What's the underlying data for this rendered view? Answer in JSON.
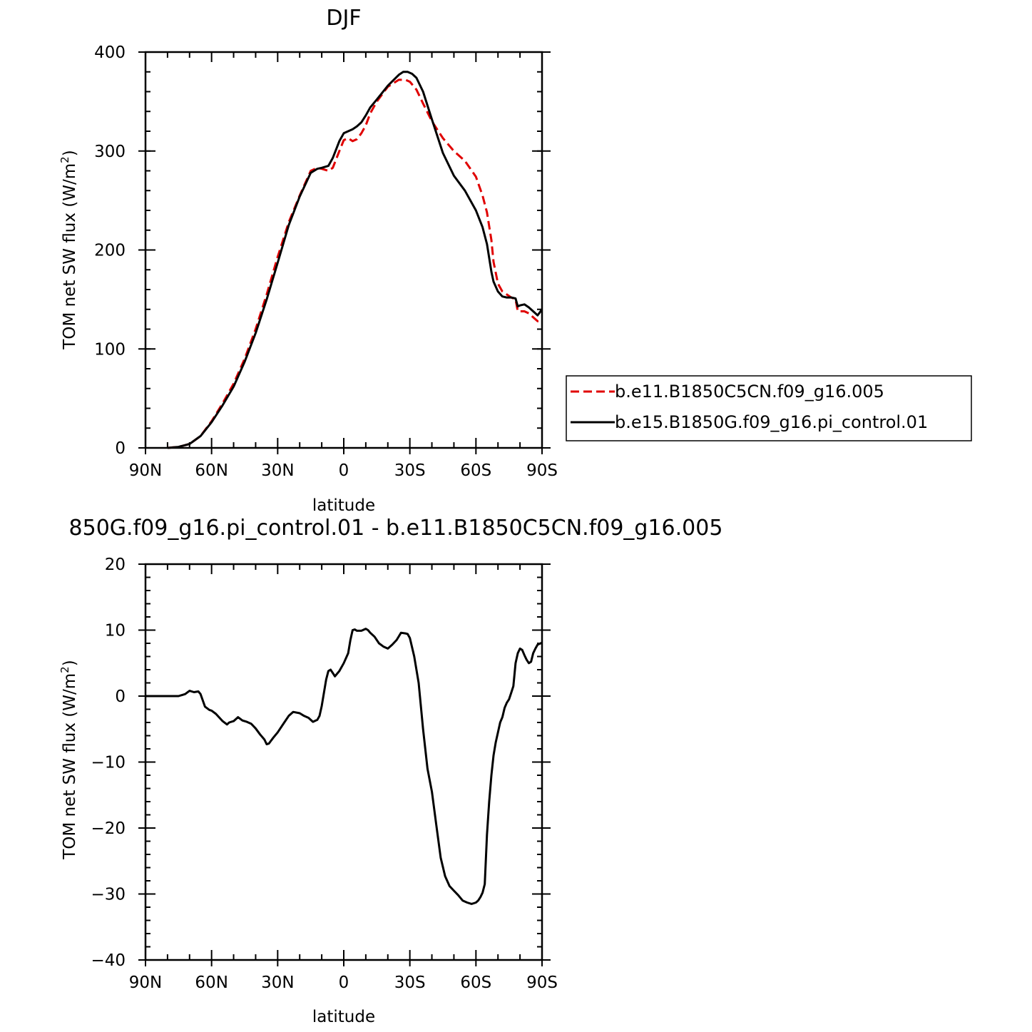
{
  "chart_data": [
    {
      "type": "line",
      "title": "DJF",
      "xlabel": "latitude",
      "ylabel": "TOM net SW flux (W/m",
      "ylabel_sup": "2",
      "ylabel_end": ")",
      "xlim": [
        90,
        -90
      ],
      "ylim": [
        0,
        400
      ],
      "x_ticks": [
        {
          "v": 90,
          "label": "90N"
        },
        {
          "v": 60,
          "label": "60N"
        },
        {
          "v": 30,
          "label": "30N"
        },
        {
          "v": 0,
          "label": "0"
        },
        {
          "v": -30,
          "label": "30S"
        },
        {
          "v": -60,
          "label": "60S"
        },
        {
          "v": -90,
          "label": "90S"
        }
      ],
      "y_ticks": [
        {
          "v": 0,
          "label": "0"
        },
        {
          "v": 100,
          "label": "100"
        },
        {
          "v": 200,
          "label": "200"
        },
        {
          "v": 300,
          "label": "300"
        },
        {
          "v": 400,
          "label": "400"
        }
      ],
      "legend_position": "right",
      "series": [
        {
          "name": "b.e11.B1850C5CN.f09_g16.005",
          "color": "#e00000",
          "dash": "dashed",
          "x": [
            80,
            75,
            70,
            65,
            60,
            55,
            50,
            45,
            40,
            35,
            30,
            25,
            20,
            15,
            12,
            10,
            7,
            5,
            2,
            0,
            -2,
            -4,
            -6,
            -8,
            -10,
            -12,
            -15,
            -20,
            -25,
            -28,
            -30,
            -33,
            -36,
            -40,
            -45,
            -50,
            -55,
            -60,
            -63,
            -65,
            -67,
            -68,
            -70,
            -72,
            -74,
            -76,
            -78,
            -79,
            -80,
            -82,
            -84,
            -86,
            -88,
            -90
          ],
          "y": [
            0,
            1,
            4,
            12,
            27,
            45,
            65,
            90,
            120,
            155,
            193,
            228,
            255,
            280,
            283,
            282,
            280,
            283,
            300,
            311,
            313,
            310,
            312,
            318,
            326,
            338,
            350,
            365,
            372,
            372,
            370,
            362,
            348,
            330,
            313,
            300,
            290,
            274,
            255,
            238,
            210,
            188,
            166,
            158,
            155,
            152,
            150,
            138,
            138,
            138,
            136,
            132,
            128,
            128
          ]
        },
        {
          "name": "b.e15.B1850G.f09_g16.pi_control.01",
          "color": "#000000",
          "dash": "solid",
          "x": [
            80,
            75,
            70,
            65,
            60,
            55,
            50,
            45,
            40,
            35,
            30,
            25,
            20,
            15,
            12,
            10,
            7,
            5,
            2,
            0,
            -2,
            -4,
            -6,
            -8,
            -10,
            -12,
            -15,
            -20,
            -25,
            -27,
            -29,
            -31,
            -33,
            -36,
            -40,
            -45,
            -50,
            -55,
            -60,
            -63,
            -65,
            -66,
            -67,
            -68,
            -70,
            -72,
            -74,
            -76,
            -78,
            -79,
            -80,
            -82,
            -84,
            -86,
            -88,
            -90
          ],
          "y": [
            0,
            1,
            4,
            12,
            26,
            43,
            62,
            87,
            116,
            150,
            187,
            225,
            254,
            278,
            282,
            283,
            285,
            293,
            310,
            318,
            320,
            322,
            325,
            329,
            336,
            344,
            352,
            366,
            377,
            380,
            380,
            378,
            374,
            360,
            332,
            298,
            275,
            260,
            240,
            223,
            206,
            192,
            178,
            168,
            158,
            153,
            152,
            152,
            151,
            143,
            144,
            145,
            142,
            138,
            134,
            140
          ]
        }
      ]
    },
    {
      "type": "line",
      "title": "850G.f09_g16.pi_control.01 - b.e11.B1850C5CN.f09_g16.005",
      "xlabel": "latitude",
      "ylabel": "TOM net SW flux (W/m",
      "ylabel_sup": "2",
      "ylabel_end": ")",
      "xlim": [
        90,
        -90
      ],
      "ylim": [
        -40,
        20
      ],
      "x_ticks": [
        {
          "v": 90,
          "label": "90N"
        },
        {
          "v": 60,
          "label": "60N"
        },
        {
          "v": 30,
          "label": "30N"
        },
        {
          "v": 0,
          "label": "0"
        },
        {
          "v": -30,
          "label": "30S"
        },
        {
          "v": -60,
          "label": "60S"
        },
        {
          "v": -90,
          "label": "90S"
        }
      ],
      "y_ticks": [
        {
          "v": -40,
          "label": "−40"
        },
        {
          "v": -30,
          "label": "−30"
        },
        {
          "v": -20,
          "label": "−20"
        },
        {
          "v": -10,
          "label": "−10"
        },
        {
          "v": 0,
          "label": "0"
        },
        {
          "v": 10,
          "label": "10"
        },
        {
          "v": 20,
          "label": "20"
        }
      ],
      "series": [
        {
          "color": "#000000",
          "dash": "solid",
          "x": [
            90,
            80,
            75,
            72,
            70,
            68,
            66,
            65,
            63,
            61,
            60,
            58,
            55,
            53,
            52,
            50,
            48,
            46,
            44,
            42,
            40,
            38,
            36,
            35,
            34,
            32,
            30,
            27,
            25,
            23,
            20,
            18,
            16,
            14,
            12,
            11,
            10,
            8,
            7,
            6,
            5,
            4,
            2,
            0,
            -2,
            -3,
            -4,
            -5,
            -6,
            -8,
            -10,
            -11,
            -12,
            -14,
            -16,
            -18,
            -20,
            -22,
            -24,
            -26,
            -28,
            -29,
            -30,
            -32,
            -34,
            -36,
            -38,
            -40,
            -42,
            -44,
            -46,
            -48,
            -50,
            -52,
            -54,
            -56,
            -58,
            -59,
            -60,
            -61,
            -62,
            -63,
            -64,
            -65,
            -66,
            -67,
            -68,
            -69,
            -70,
            -71,
            -72,
            -73,
            -74,
            -75,
            -76,
            -77,
            -78,
            -79,
            -80,
            -81,
            -82,
            -83,
            -84,
            -85,
            -86,
            -87,
            -88,
            -90
          ],
          "y": [
            0,
            0,
            0,
            0.3,
            0.8,
            0.6,
            0.7,
            0.3,
            -1.6,
            -2.1,
            -2.2,
            -2.7,
            -3.8,
            -4.3,
            -4.0,
            -3.8,
            -3.2,
            -3.7,
            -3.9,
            -4.2,
            -4.9,
            -5.8,
            -6.6,
            -7.3,
            -7.2,
            -6.3,
            -5.5,
            -4.0,
            -3.0,
            -2.4,
            -2.6,
            -3.0,
            -3.3,
            -3.9,
            -3.6,
            -3.0,
            -1.5,
            2.5,
            3.8,
            4.0,
            3.5,
            3.0,
            3.8,
            5.0,
            6.5,
            8.5,
            10.0,
            10.1,
            9.9,
            9.9,
            10.2,
            10.0,
            9.6,
            9.0,
            8.0,
            7.5,
            7.2,
            7.8,
            8.5,
            9.6,
            9.5,
            9.4,
            8.8,
            6.0,
            2.0,
            -5.0,
            -11.0,
            -14.5,
            -19.5,
            -24.5,
            -27.3,
            -28.8,
            -29.5,
            -30.2,
            -31.0,
            -31.3,
            -31.5,
            -31.4,
            -31.3,
            -31.0,
            -30.5,
            -29.8,
            -28.5,
            -21.0,
            -16.0,
            -12.0,
            -9.0,
            -7.0,
            -5.5,
            -4.0,
            -3.2,
            -1.8,
            -1.0,
            -0.5,
            0.5,
            1.5,
            5.0,
            6.5,
            7.2,
            7.0,
            6.2,
            5.5,
            5.0,
            5.2,
            6.5,
            7.2,
            7.8,
            8.1
          ]
        }
      ]
    }
  ]
}
